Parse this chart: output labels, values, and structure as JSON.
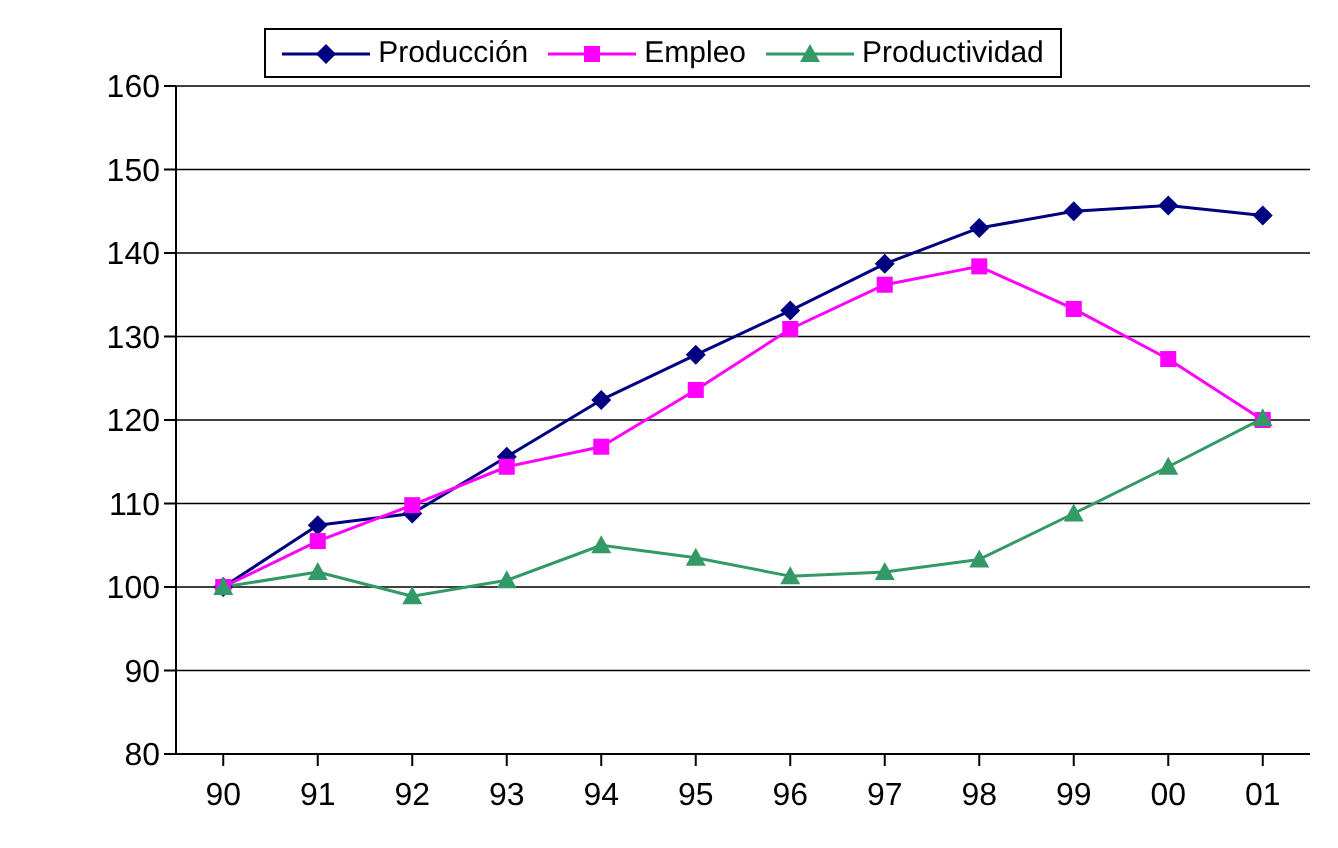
{
  "chart_data": {
    "type": "line",
    "categories": [
      "90",
      "91",
      "92",
      "93",
      "94",
      "95",
      "96",
      "97",
      "98",
      "99",
      "00",
      "01"
    ],
    "series": [
      {
        "name": "Producción",
        "color": "#000080",
        "marker": "diamond",
        "values": [
          100,
          107.4,
          108.8,
          115.6,
          122.4,
          127.8,
          133.1,
          138.7,
          143,
          145,
          145.7,
          144.5
        ]
      },
      {
        "name": "Empleo",
        "color": "#ff00ff",
        "marker": "square",
        "values": [
          100,
          105.5,
          109.8,
          114.4,
          116.8,
          123.6,
          130.9,
          136.2,
          138.4,
          133.3,
          127.3,
          120
        ]
      },
      {
        "name": "Productividad",
        "color": "#339966",
        "marker": "triangle",
        "values": [
          100,
          101.8,
          98.9,
          100.8,
          105,
          103.5,
          101.3,
          101.8,
          103.3,
          108.8,
          114.4,
          120.2
        ]
      }
    ],
    "ylim": [
      80,
      160
    ],
    "yticks": [
      80,
      90,
      100,
      110,
      120,
      130,
      140,
      150,
      160
    ],
    "grid": "y",
    "legend": "top",
    "line_style": "solid"
  }
}
